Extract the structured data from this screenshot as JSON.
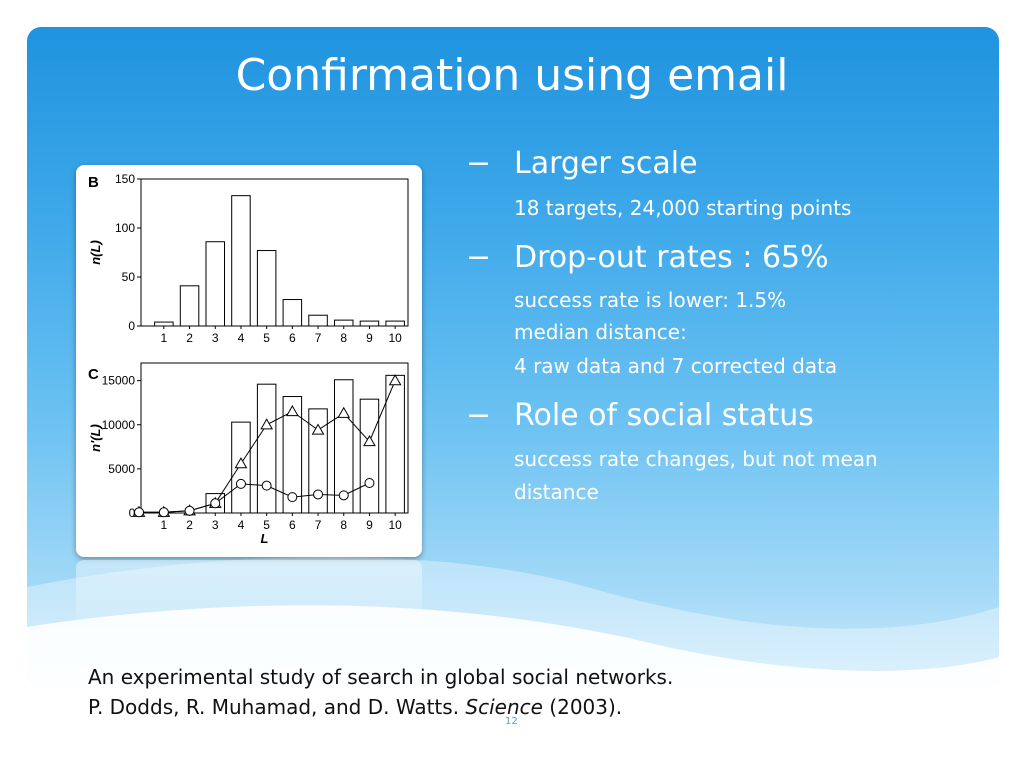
{
  "slide": {
    "title": "Confirmation using email",
    "page_number": "12",
    "bullets": [
      {
        "dash": "−",
        "heading": "Larger scale",
        "details": [
          "18 targets, 24,000 starting points"
        ]
      },
      {
        "dash": "−",
        "heading": "Drop-out rates : 65%",
        "details": [
          "success rate is lower: 1.5%",
          "median distance:",
          "4 raw data and 7 corrected data"
        ]
      },
      {
        "dash": "−",
        "heading": "Role of social status",
        "details": [
          "success rate changes, but not mean",
          "distance"
        ]
      }
    ],
    "citation": {
      "line1": "An experimental study of search in global social networks.",
      "line2_pre": "P. Dodds, R. Muhamad, and D. Watts. ",
      "line2_journal": "Science",
      "line2_post": " (2003)."
    }
  },
  "chart_data": [
    {
      "type": "bar",
      "panel_label": "B",
      "title": "",
      "xlabel": "",
      "ylabel": "n(L)",
      "categories": [
        "1",
        "2",
        "3",
        "4",
        "5",
        "6",
        "7",
        "8",
        "9",
        "10"
      ],
      "values": [
        4,
        41,
        86,
        133,
        77,
        27,
        11,
        6,
        5,
        5
      ],
      "ylim": [
        0,
        150
      ],
      "yticks": [
        0,
        50,
        100,
        150
      ]
    },
    {
      "type": "bar",
      "panel_label": "C",
      "title": "",
      "xlabel": "L",
      "ylabel": "n'(L)",
      "categories": [
        "1",
        "2",
        "3",
        "4",
        "5",
        "6",
        "7",
        "8",
        "9",
        "10"
      ],
      "values": [
        0,
        0,
        2200,
        10300,
        14600,
        13200,
        11800,
        15100,
        12900,
        15600
      ],
      "ylim": [
        0,
        17000
      ],
      "yticks": [
        5000,
        10000,
        15000
      ],
      "x_axis_start_label": "0",
      "series": [
        {
          "marker": "triangle",
          "values": [
            80,
            250,
            1100,
            5600,
            10000,
            11500,
            9400,
            11300,
            8100,
            15000
          ]
        },
        {
          "marker": "circle",
          "values": [
            80,
            250,
            1100,
            3300,
            3100,
            1800,
            2100,
            2000,
            3400,
            null
          ]
        }
      ]
    }
  ]
}
